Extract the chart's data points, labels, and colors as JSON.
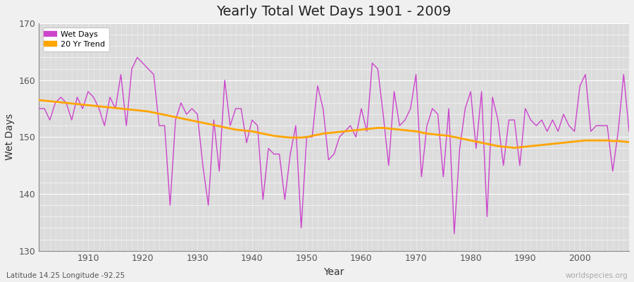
{
  "title": "Yearly Total Wet Days 1901 - 2009",
  "xlabel": "Year",
  "ylabel": "Wet Days",
  "subtitle": "Latitude 14.25 Longitude -92.25",
  "watermark": "worldspecies.org",
  "wet_days_color": "#CC44CC",
  "trend_color": "#FFA500",
  "background_color": "#F0F0F0",
  "plot_bg_color": "#DCDCDC",
  "ylim": [
    130,
    170
  ],
  "xlim": [
    1901,
    2009
  ],
  "years": [
    1901,
    1902,
    1903,
    1904,
    1905,
    1906,
    1907,
    1908,
    1909,
    1910,
    1911,
    1912,
    1913,
    1914,
    1915,
    1916,
    1917,
    1918,
    1919,
    1920,
    1921,
    1922,
    1923,
    1924,
    1925,
    1926,
    1927,
    1928,
    1929,
    1930,
    1931,
    1932,
    1933,
    1934,
    1935,
    1936,
    1937,
    1938,
    1939,
    1940,
    1941,
    1942,
    1943,
    1944,
    1945,
    1946,
    1947,
    1948,
    1949,
    1950,
    1951,
    1952,
    1953,
    1954,
    1955,
    1956,
    1957,
    1958,
    1959,
    1960,
    1961,
    1962,
    1963,
    1964,
    1965,
    1966,
    1967,
    1968,
    1969,
    1970,
    1971,
    1972,
    1973,
    1974,
    1975,
    1976,
    1977,
    1978,
    1979,
    1980,
    1981,
    1982,
    1983,
    1984,
    1985,
    1986,
    1987,
    1988,
    1989,
    1990,
    1991,
    1992,
    1993,
    1994,
    1995,
    1996,
    1997,
    1998,
    1999,
    2000,
    2001,
    2002,
    2003,
    2004,
    2005,
    2006,
    2007,
    2008,
    2009
  ],
  "wet_days": [
    155,
    155,
    153,
    156,
    157,
    156,
    153,
    157,
    155,
    158,
    157,
    155,
    152,
    157,
    155,
    161,
    152,
    162,
    164,
    163,
    162,
    161,
    152,
    152,
    138,
    153,
    156,
    154,
    155,
    154,
    145,
    138,
    153,
    144,
    160,
    152,
    155,
    155,
    149,
    153,
    152,
    139,
    148,
    147,
    147,
    139,
    147,
    152,
    134,
    150,
    150,
    159,
    155,
    146,
    147,
    150,
    151,
    152,
    150,
    155,
    151,
    163,
    162,
    154,
    145,
    158,
    152,
    153,
    155,
    161,
    143,
    152,
    155,
    154,
    143,
    155,
    133,
    148,
    155,
    158,
    148,
    158,
    136,
    157,
    153,
    145,
    153,
    153,
    145,
    155,
    153,
    152,
    153,
    151,
    153,
    151,
    154,
    152,
    151,
    159,
    161,
    151,
    152,
    152,
    152,
    144,
    151,
    161,
    151
  ],
  "trend": [
    156.5,
    156.4,
    156.3,
    156.2,
    156.1,
    156.0,
    155.9,
    155.8,
    155.7,
    155.6,
    155.5,
    155.4,
    155.3,
    155.2,
    155.1,
    155.0,
    154.9,
    154.8,
    154.7,
    154.6,
    154.5,
    154.3,
    154.1,
    153.9,
    153.7,
    153.5,
    153.3,
    153.1,
    152.9,
    152.7,
    152.5,
    152.3,
    152.1,
    151.9,
    151.7,
    151.5,
    151.3,
    151.2,
    151.1,
    151.0,
    150.8,
    150.6,
    150.4,
    150.2,
    150.1,
    150.0,
    149.9,
    149.9,
    149.9,
    150.0,
    150.2,
    150.4,
    150.6,
    150.7,
    150.8,
    150.9,
    151.0,
    151.1,
    151.2,
    151.3,
    151.4,
    151.5,
    151.6,
    151.6,
    151.5,
    151.4,
    151.3,
    151.2,
    151.1,
    151.0,
    150.8,
    150.6,
    150.5,
    150.4,
    150.3,
    150.2,
    150.0,
    149.8,
    149.6,
    149.4,
    149.2,
    149.0,
    148.8,
    148.6,
    148.4,
    148.3,
    148.2,
    148.1,
    148.2,
    148.3,
    148.4,
    148.5,
    148.6,
    148.7,
    148.8,
    148.9,
    149.0,
    149.1,
    149.2,
    149.3,
    149.4,
    149.4,
    149.4,
    149.4,
    149.4,
    149.3,
    149.3,
    149.2,
    149.1
  ]
}
